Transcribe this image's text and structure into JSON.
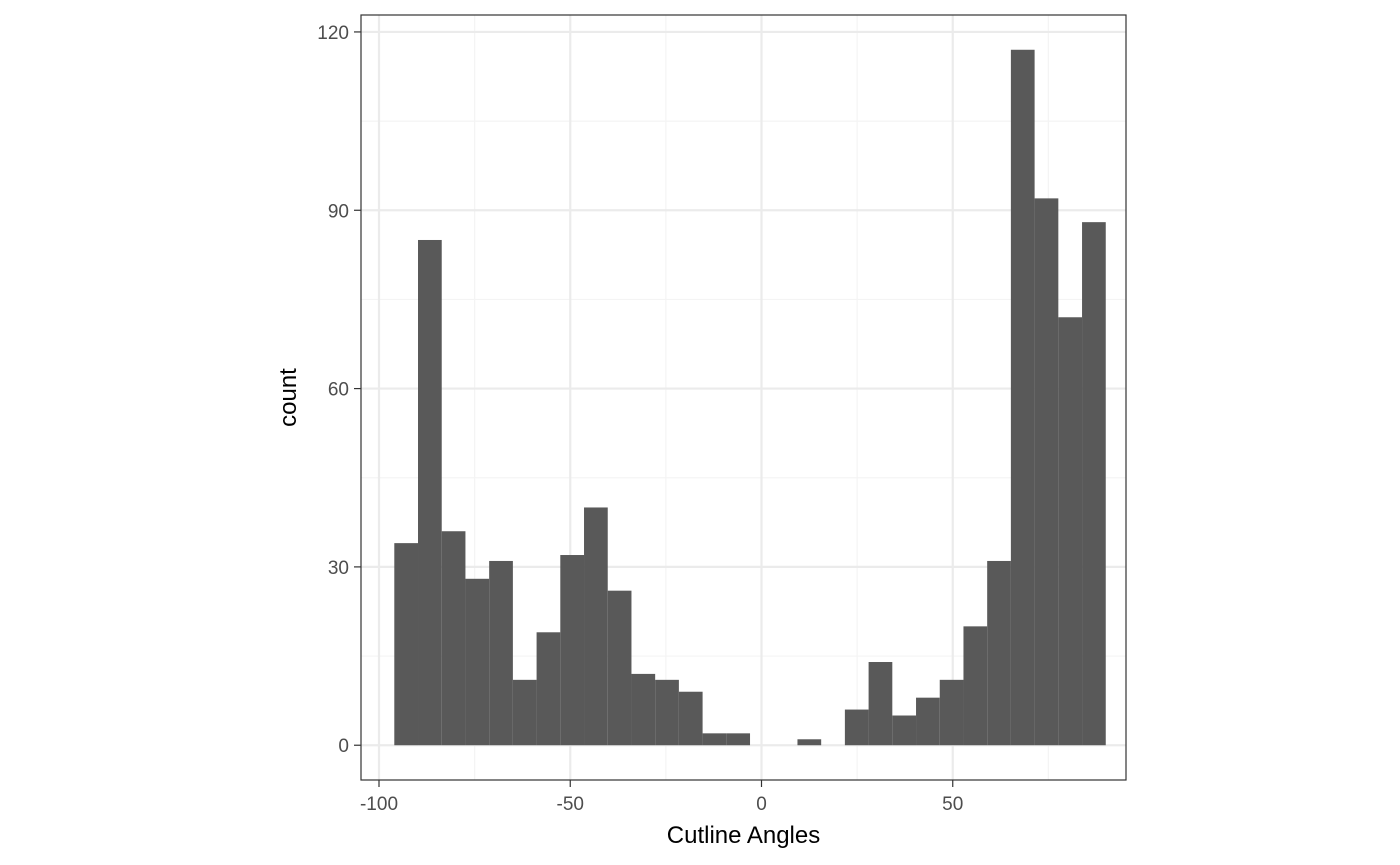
{
  "chart_data": {
    "type": "histogram",
    "title": "",
    "xlabel": "Cutline Angles",
    "ylabel": "count",
    "xlim": [
      -100,
      100
    ],
    "ylim": [
      -5.85,
      122.85
    ],
    "x_ticks": [
      -100,
      -50,
      0,
      50
    ],
    "x_tick_labels": [
      "-100",
      "-50",
      "0",
      "50"
    ],
    "y_ticks": [
      0,
      30,
      60,
      90,
      120
    ],
    "y_tick_labels": [
      "0",
      "30",
      "60",
      "90",
      "120"
    ],
    "grid": true,
    "legend": "none",
    "bins": [
      {
        "x0": -96.0,
        "x1": -89.8,
        "count": 34
      },
      {
        "x0": -89.8,
        "x1": -83.6,
        "count": 85
      },
      {
        "x0": -83.6,
        "x1": -77.4,
        "count": 36
      },
      {
        "x0": -77.4,
        "x1": -71.2,
        "count": 28
      },
      {
        "x0": -71.2,
        "x1": -65.0,
        "count": 31
      },
      {
        "x0": -65.0,
        "x1": -58.8,
        "count": 11
      },
      {
        "x0": -58.8,
        "x1": -52.6,
        "count": 19
      },
      {
        "x0": -52.6,
        "x1": -46.4,
        "count": 32
      },
      {
        "x0": -46.4,
        "x1": -40.2,
        "count": 40
      },
      {
        "x0": -40.2,
        "x1": -34.0,
        "count": 26
      },
      {
        "x0": -34.0,
        "x1": -27.8,
        "count": 12
      },
      {
        "x0": -27.8,
        "x1": -21.6,
        "count": 11
      },
      {
        "x0": -21.6,
        "x1": -15.4,
        "count": 9
      },
      {
        "x0": -15.4,
        "x1": -9.2,
        "count": 2
      },
      {
        "x0": -9.2,
        "x1": -3.0,
        "count": 2
      },
      {
        "x0": -3.0,
        "x1": 3.2,
        "count": 0
      },
      {
        "x0": 3.2,
        "x1": 9.4,
        "count": 0
      },
      {
        "x0": 9.4,
        "x1": 15.6,
        "count": 1
      },
      {
        "x0": 15.6,
        "x1": 21.8,
        "count": 0
      },
      {
        "x0": 21.8,
        "x1": 28.0,
        "count": 6
      },
      {
        "x0": 28.0,
        "x1": 34.2,
        "count": 14
      },
      {
        "x0": 34.2,
        "x1": 40.4,
        "count": 5
      },
      {
        "x0": 40.4,
        "x1": 46.6,
        "count": 8
      },
      {
        "x0": 46.6,
        "x1": 52.8,
        "count": 11
      },
      {
        "x0": 52.8,
        "x1": 59.0,
        "count": 20
      },
      {
        "x0": 59.0,
        "x1": 65.2,
        "count": 31
      },
      {
        "x0": 65.2,
        "x1": 71.4,
        "count": 117
      },
      {
        "x0": 71.4,
        "x1": 77.6,
        "count": 92
      },
      {
        "x0": 77.6,
        "x1": 83.8,
        "count": 72
      },
      {
        "x0": 83.8,
        "x1": 90.0,
        "count": 88
      }
    ],
    "colors": {
      "bar": "#595959",
      "panel_border": "#333333",
      "grid_major": "#ebebeb",
      "grid_minor": "#f4f4f4",
      "tick_text": "#4d4d4d",
      "axis_title": "#000000"
    }
  }
}
